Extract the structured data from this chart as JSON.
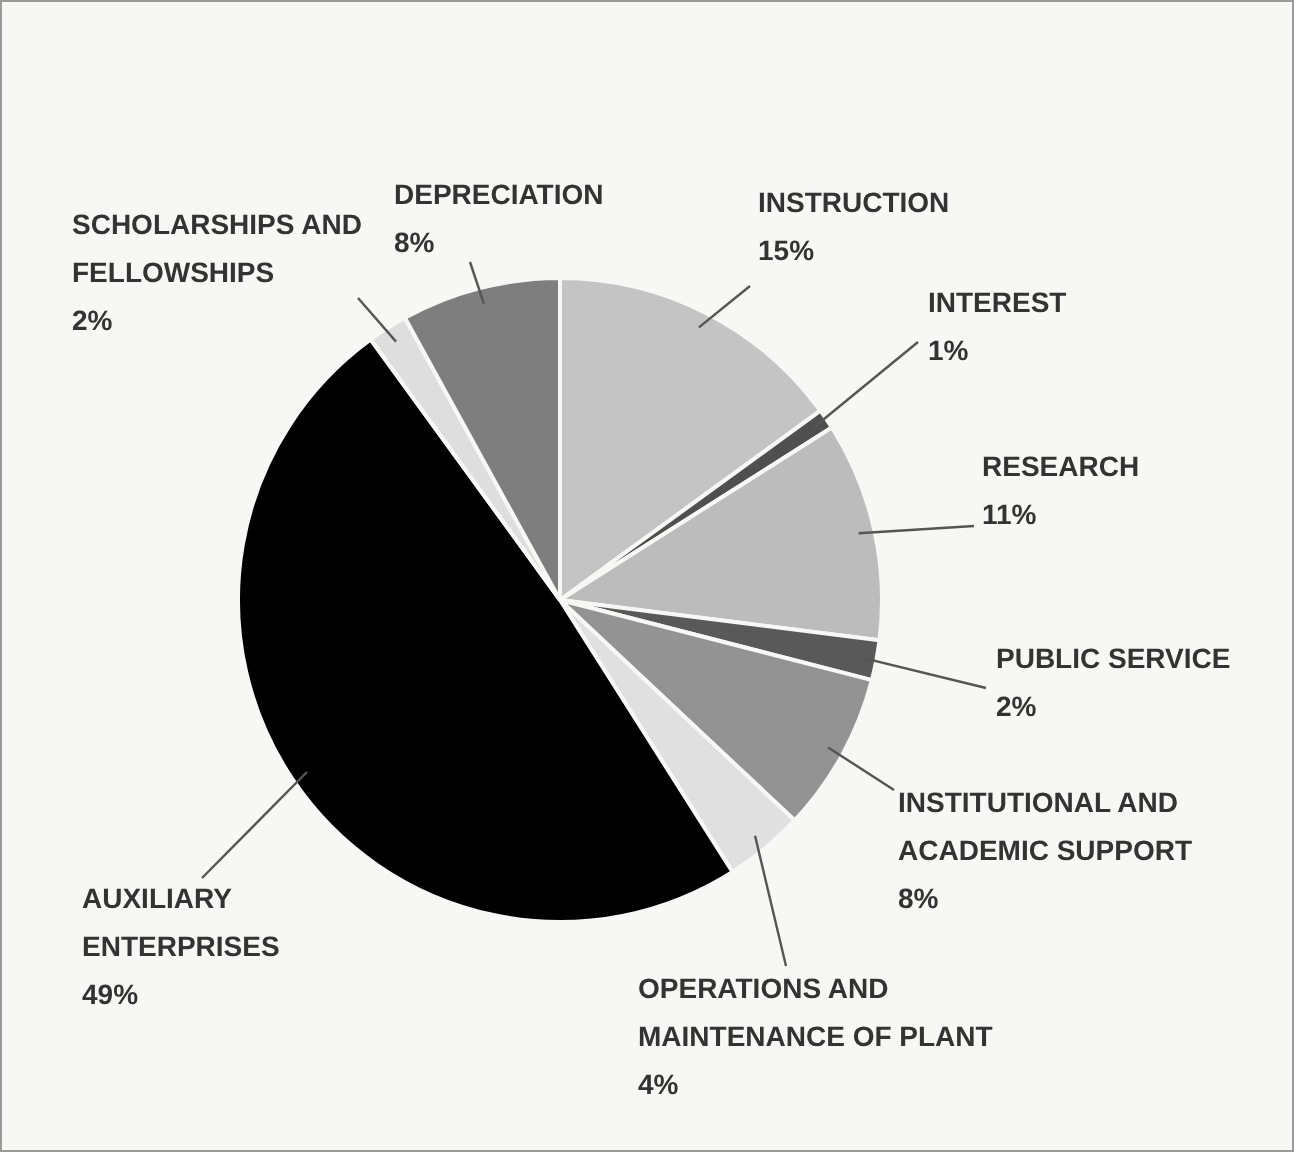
{
  "chart_data": {
    "type": "pie",
    "categories": [
      "INSTRUCTION",
      "INTEREST",
      "RESEARCH",
      "PUBLIC SERVICE",
      "INSTITUTIONAL AND ACADEMIC SUPPORT",
      "OPERATIONS AND MAINTENANCE OF PLANT",
      "AUXILIARY ENTERPRISES",
      "SCHOLARSHIPS AND FELLOWSHIPS",
      "DEPRECIATION"
    ],
    "values": [
      15,
      1,
      11,
      2,
      8,
      4,
      49,
      2,
      8
    ],
    "value_labels": [
      "15%",
      "1%",
      "11%",
      "2%",
      "8%",
      "4%",
      "49%",
      "2%",
      "8%"
    ],
    "colors": [
      "#c4c4c4",
      "#4f4f4f",
      "#bcbcbc",
      "#595959",
      "#939393",
      "#e0e0e0",
      "#000000",
      "#dedede",
      "#7e7e7e"
    ],
    "legend": false
  }
}
